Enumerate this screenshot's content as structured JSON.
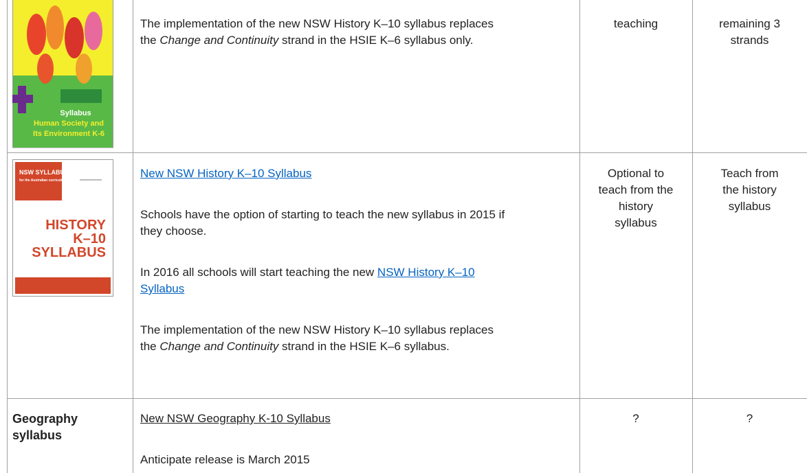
{
  "table": {
    "rows": [
      {
        "thumbnail": [
          "Syllabus",
          "Human Society and",
          "Its Environment K-6"
        ],
        "description": [
          [
            "The implementation of the new NSW History K–10 syllabus replaces the ",
            "Change and Continuity",
            " strand in the HSIE K–6 syllabus only."
          ]
        ],
        "status_2015": "teaching",
        "status_2016": "remaining 3 strands"
      },
      {
        "thumbnail": [
          "NSW SYLLABUS",
          "for the Australian curriculum",
          "HISTORY",
          "K–10",
          "SYLLABUS"
        ],
        "link": "New NSW History K–10 Syllabus",
        "description": [
          "Schools have the option of starting to teach the new syllabus in 2015 if they choose.",
          [
            "In 2016 all schools will start teaching the new ",
            "NSW History K–10 Syllabus"
          ],
          [
            "The implementation of the new NSW History K–10 syllabus replaces the ",
            "Change and Continuity",
            " strand in the HSIE K–6 syllabus."
          ]
        ],
        "status_2015": "Optional to teach from the history syllabus",
        "status_2016": "Teach from the history syllabus"
      },
      {
        "heading": "Geography syllabus",
        "link": "New NSW Geography K-10 Syllabus",
        "description": [
          "Anticipate release is March 2015"
        ],
        "status_2015": "?",
        "status_2016": "?"
      }
    ]
  }
}
